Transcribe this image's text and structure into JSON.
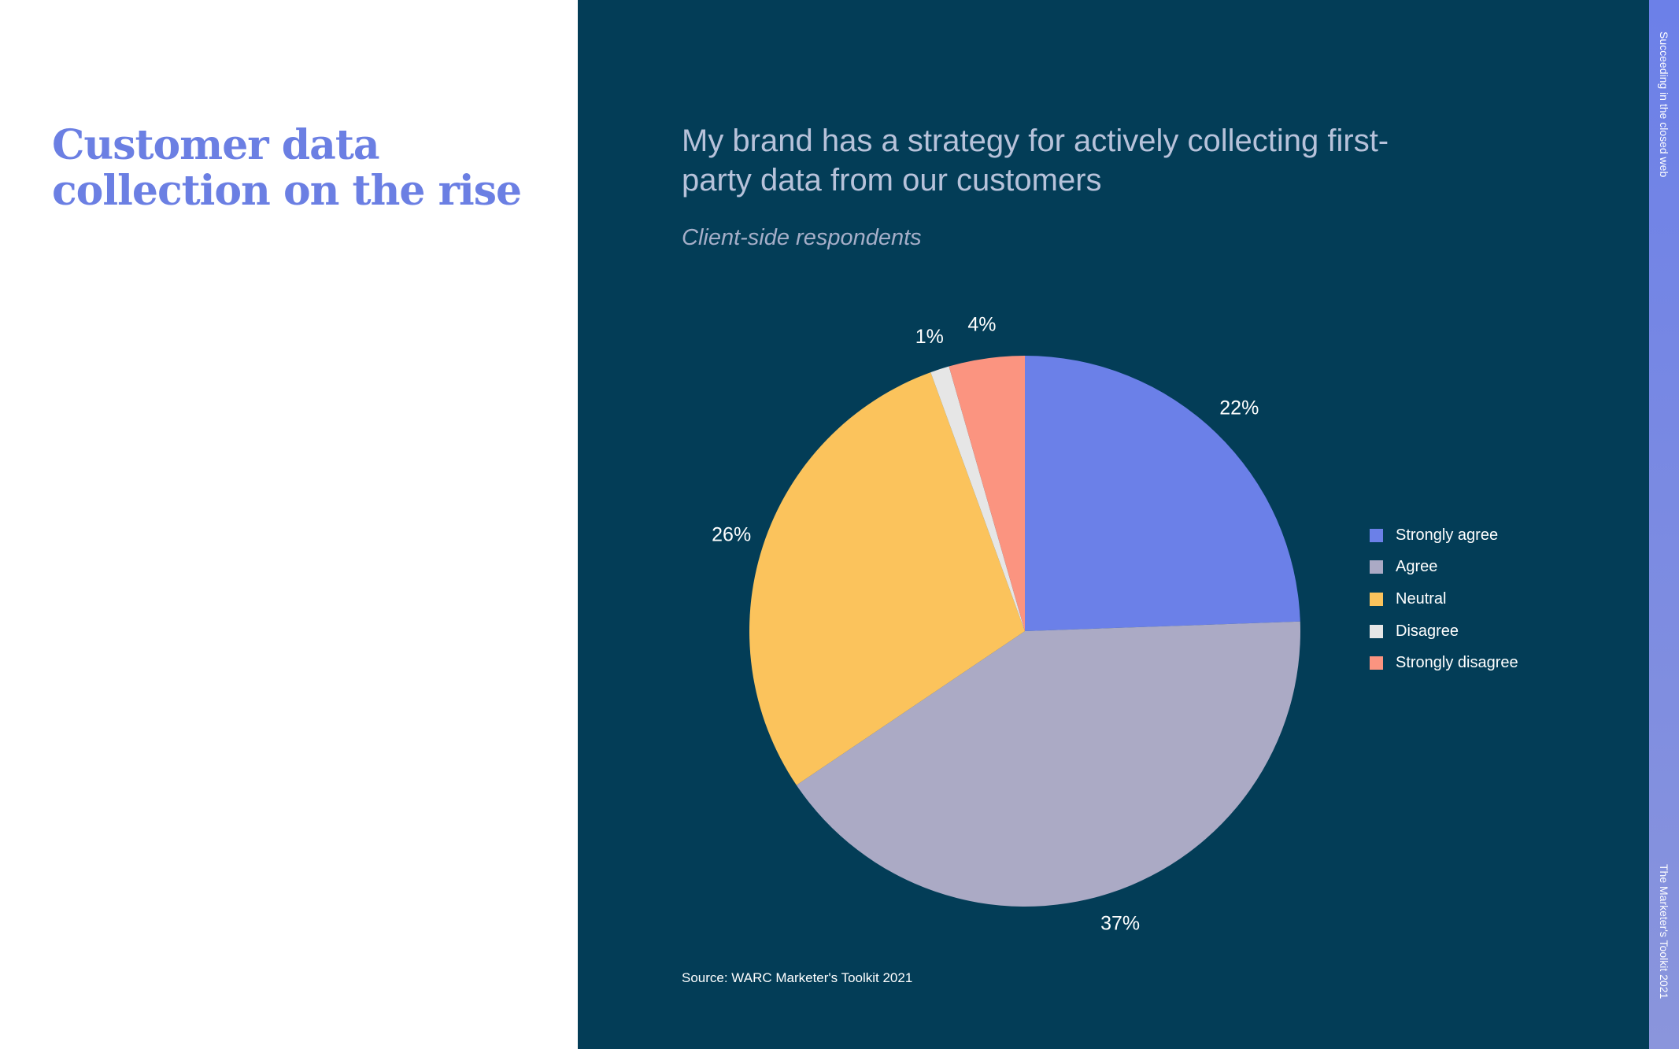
{
  "left": {
    "headline": "Customer data collection on the rise",
    "body": ""
  },
  "chart_data": {
    "type": "pie",
    "title": "My brand has a strategy for actively collecting first-party data from our customers",
    "subtitle": "Client-side respondents",
    "categories": [
      "Strongly agree",
      "Agree",
      "Neutral",
      "Disagree",
      "Strongly disagree"
    ],
    "values": [
      22,
      37,
      26,
      1,
      4
    ],
    "data_labels": [
      "22%",
      "37%",
      "26%",
      "1%",
      "4%"
    ],
    "colors": [
      "#6b80e8",
      "#abaac5",
      "#fbc35c",
      "#e6e6e6",
      "#fb9480"
    ],
    "legend_placement": "right",
    "source": "Source: WARC Marketer's Toolkit 2021"
  },
  "sidebar": {
    "top_text": "Succeeding in the closed web",
    "bottom_text": "The Marketer's Toolkit 2021"
  }
}
